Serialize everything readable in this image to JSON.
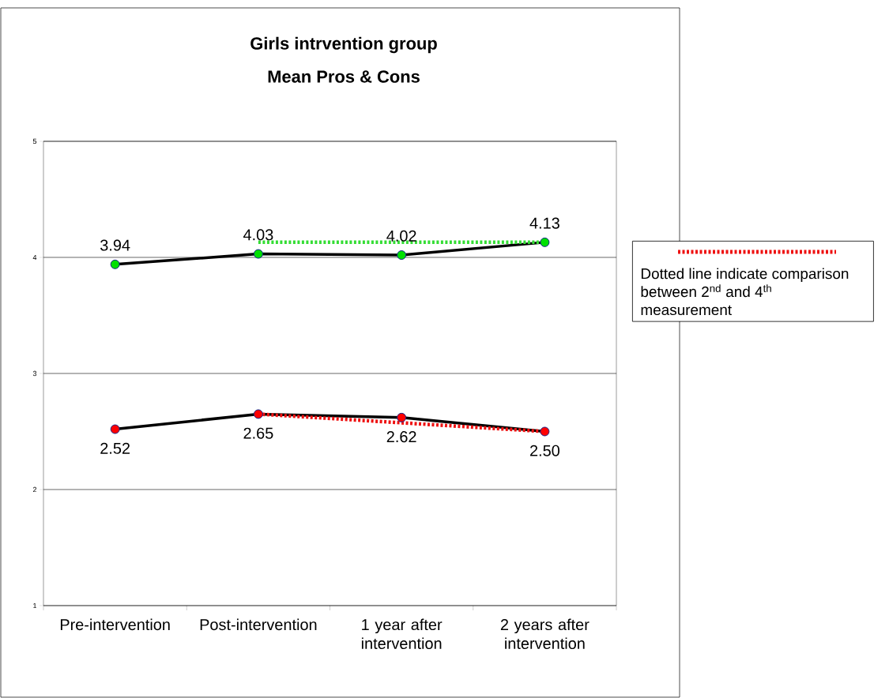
{
  "chart_data": {
    "type": "line",
    "title": "Girls intrvention group",
    "subtitle": "Mean Pros & Cons",
    "categories": [
      "Pre-intervention",
      "Post-intervention",
      "1 year after intervention",
      "2 years after intervention"
    ],
    "series": [
      {
        "color": "#00e000",
        "values": [
          3.94,
          4.03,
          4.02,
          4.13
        ],
        "value_labels": [
          "3.94",
          "4.03",
          "4.02",
          "4.13"
        ],
        "marker": "circle",
        "line_style": "solid"
      },
      {
        "color": "#ff0000",
        "values": [
          2.52,
          2.65,
          2.62,
          2.5
        ],
        "value_labels": [
          "2.52",
          "2.65",
          "2.62",
          "2.50"
        ],
        "marker": "circle",
        "line_style": "solid"
      },
      {
        "color": "#33dd33",
        "values": [
          null,
          4.13,
          4.13,
          4.13
        ],
        "marker": "none",
        "line_style": "dotted"
      },
      {
        "color": "#ee1111",
        "values": [
          null,
          2.65,
          2.575,
          2.5
        ],
        "marker": "none",
        "line_style": "dotted"
      }
    ],
    "annotations": [
      "Dotted line indicate comparison between 2$^{nd}$ and 4$^{th}$ measurement"
    ],
    "ylim": [
      1,
      5
    ],
    "yticks": [
      1,
      2,
      3,
      4,
      5
    ],
    "grid": "y"
  }
}
